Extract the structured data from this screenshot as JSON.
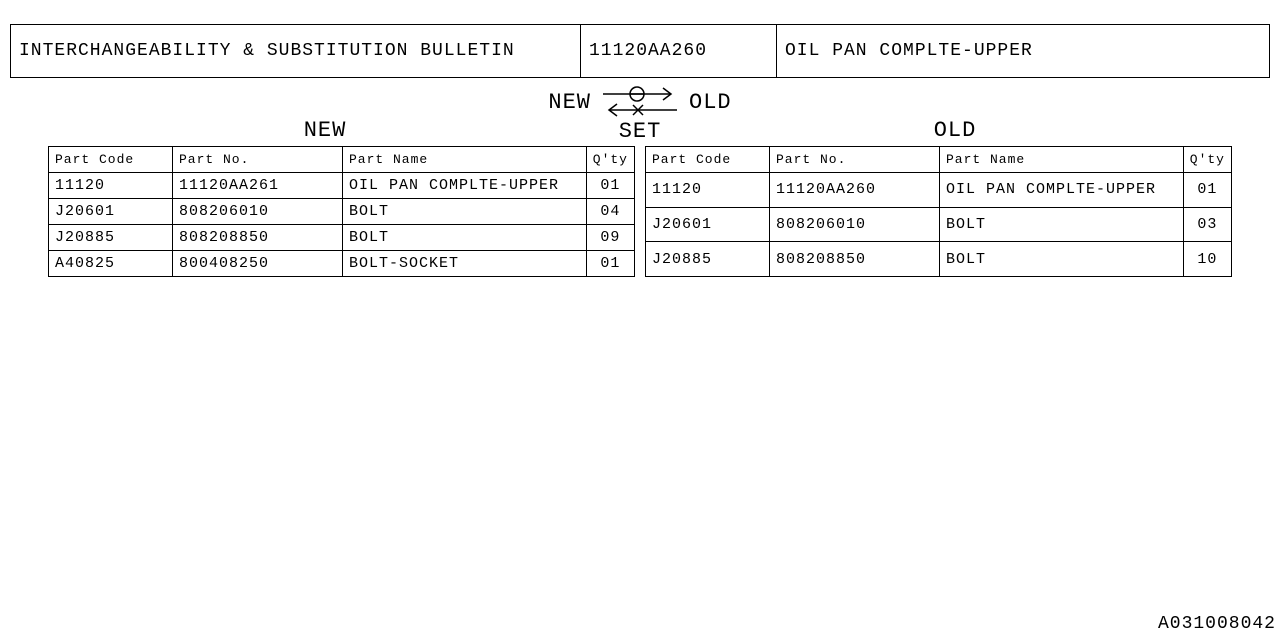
{
  "header": {
    "title": "INTERCHANGEABILITY & SUBSTITUTION BULLETIN",
    "part_no": "11120AA260",
    "part_name": "OIL PAN COMPLTE-UPPER"
  },
  "labels": {
    "new": "NEW",
    "old": "OLD",
    "set": "SET"
  },
  "table_headers": {
    "part_code": "Part Code",
    "part_no": "Part No.",
    "part_name": "Part Name",
    "qty": "Q'ty"
  },
  "new_rows": [
    {
      "code": "11120",
      "no": "11120AA261",
      "name": "OIL PAN COMPLTE-UPPER",
      "qty": "01"
    },
    {
      "code": "J20601",
      "no": "808206010",
      "name": "BOLT",
      "qty": "04"
    },
    {
      "code": "J20885",
      "no": "808208850",
      "name": "BOLT",
      "qty": "09"
    },
    {
      "code": "A40825",
      "no": "800408250",
      "name": "BOLT-SOCKET",
      "qty": "01"
    }
  ],
  "old_rows": [
    {
      "code": "11120",
      "no": "11120AA260",
      "name": "OIL PAN COMPLTE-UPPER",
      "qty": "01"
    },
    {
      "code": "J20601",
      "no": "808206010",
      "name": "BOLT",
      "qty": "03"
    },
    {
      "code": "J20885",
      "no": "808208850",
      "name": "BOLT",
      "qty": "10"
    }
  ],
  "footer_code": "A031008042",
  "colors": {
    "line": "#000000",
    "bg": "#ffffff"
  }
}
